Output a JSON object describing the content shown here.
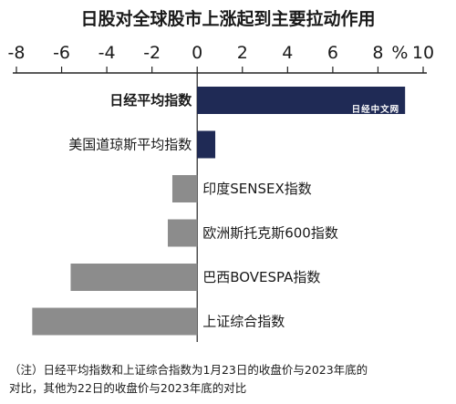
{
  "chart_data": {
    "type": "bar",
    "orientation": "horizontal",
    "title": "日股对全球股市上涨起到主要拉动作用",
    "unit_label": "%",
    "xlim": [
      -8,
      10
    ],
    "x_ticks": [
      "-8",
      "-6",
      "-4",
      "-2",
      "0",
      "2",
      "4",
      "6",
      "8",
      "10"
    ],
    "categories": [
      "日经平均指数",
      "美国道琼斯平均指数",
      "印度SENSEX指数",
      "欧洲斯托克斯600指数",
      "巴西BOVESPA指数",
      "上证综合指数"
    ],
    "values": [
      9.2,
      0.8,
      -1.1,
      -1.3,
      -5.6,
      -7.3
    ],
    "bar_colors": [
      "#1f2a55",
      "#1f2a55",
      "#8c8c8c",
      "#8c8c8c",
      "#8c8c8c",
      "#8c8c8c"
    ],
    "grid": false,
    "legend": "none"
  },
  "watermark": "日经中文网",
  "note": {
    "line1": "（注）日经平均指数和上证综合指数为1月23日的收盘价与2023年底的",
    "line2": "对比，其他为22日的收盘价与2023年底的对比"
  }
}
